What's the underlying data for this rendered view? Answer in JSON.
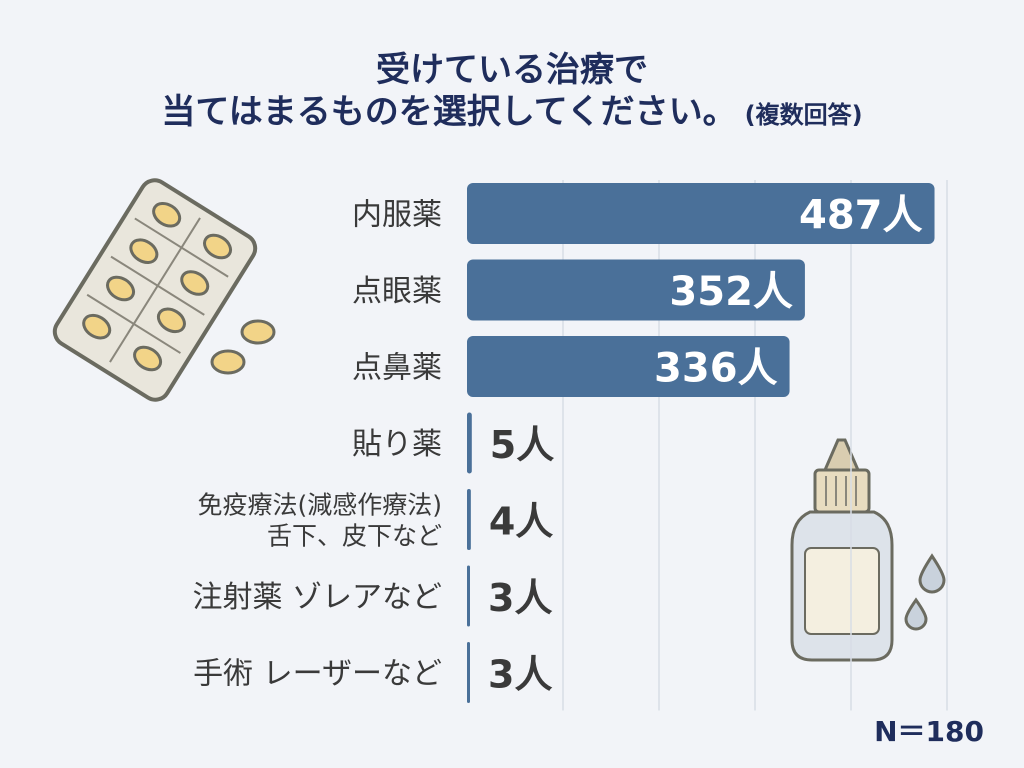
{
  "title": {
    "line1": "受けている治療で",
    "line2": "当てはまるものを選択してください。",
    "note": "(複数回答)"
  },
  "footer": {
    "sample_size": "N＝180"
  },
  "colors": {
    "bar": "#4a7099",
    "title": "#1f2d5c",
    "label": "#3a3a3a",
    "grid": "#d8dde6",
    "value_small": "#3a3a3a",
    "value_large": "#ffffff"
  },
  "icons": [
    "pill-blister-pack-icon",
    "nasal-spray-bottle-icon",
    "water-drop-icon"
  ],
  "chart_data": {
    "type": "bar",
    "orientation": "horizontal",
    "unit": "人",
    "categories": [
      [
        "内服薬"
      ],
      [
        "点眼薬"
      ],
      [
        "点鼻薬"
      ],
      [
        "貼り薬"
      ],
      [
        "免疫療法(減感作療法)",
        "舌下、皮下など"
      ],
      [
        "注射薬 ゾレアなど"
      ],
      [
        "手術 レーザーなど"
      ]
    ],
    "values": [
      487,
      352,
      336,
      5,
      4,
      3,
      3
    ],
    "value_labels": [
      "487人",
      "352人",
      "336人",
      "5人",
      "4人",
      "3人",
      "3人"
    ],
    "xlim": [
      0,
      500
    ],
    "grid": true
  }
}
